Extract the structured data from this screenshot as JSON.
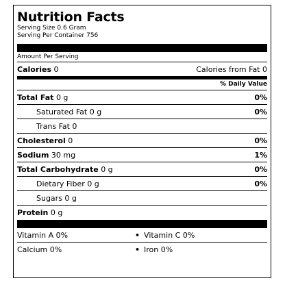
{
  "title": "Nutrition Facts",
  "serving_size": "Serving Size 0.6 Gram",
  "servings_per_container": "Serving Per Container 756",
  "amount_per_serving": "Amount Per Serving",
  "calories": {
    "label": "Calories",
    "value": "0",
    "from_fat": "Calories from Fat 0"
  },
  "daily_value_header": "% Daily Value",
  "nutrients": [
    {
      "label": "Total Fat",
      "value": "0 g",
      "dv": "0%"
    },
    {
      "label": "Saturated Fat 0 g",
      "dv": "0%"
    },
    {
      "label": "Trans Fat 0"
    },
    {
      "label": "Cholesterol",
      "value": "0",
      "dv": "0%"
    },
    {
      "label": "Sodium",
      "value": "30 mg",
      "dv": "1%"
    },
    {
      "label": "Total Carbohydrate",
      "value": "0 g",
      "dv": "0%"
    },
    {
      "label": "Dietary Fiber 0 g",
      "dv": "0%"
    },
    {
      "label": "Sugars 0 g"
    },
    {
      "label": "Protein",
      "value": "0 g"
    }
  ],
  "vitamins": {
    "vitamin_a": "Vitamin A 0%",
    "vitamin_c": "Vitamin C 0%",
    "calcium": "Calcium 0%",
    "iron": "Iron 0%"
  }
}
